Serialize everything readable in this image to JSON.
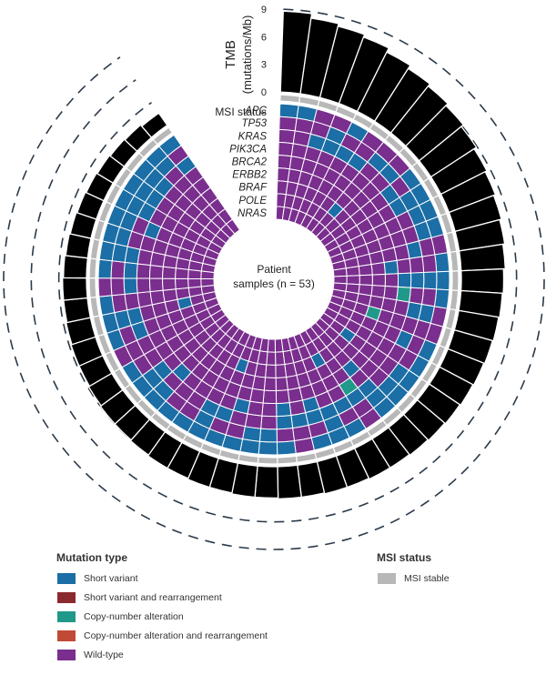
{
  "chart_data": {
    "type": "circos",
    "n_samples": 53,
    "tmb_axis": {
      "label_line1": "TMB",
      "label_line2": "(mutations/Mb)",
      "ticks": [
        "9",
        "6",
        "3",
        "0"
      ],
      "range": [
        0,
        9
      ]
    },
    "msi_track_label": "MSI status",
    "genes": [
      "APC",
      "TP53",
      "KRAS",
      "PIK3CA",
      "BRCA2",
      "ERBB2",
      "BRAF",
      "POLE",
      "NRAS"
    ],
    "center_label_line1": "Patient",
    "center_label_line2": "samples (n = 53)",
    "tmb_values": [
      8.8,
      8.3,
      8.0,
      7.7,
      7.2,
      6.8,
      6.5,
      6.2,
      5.9,
      5.6,
      5.4,
      5.2,
      5.0,
      4.8,
      4.6,
      4.5,
      4.4,
      4.3,
      4.2,
      4.1,
      4.0,
      3.9,
      3.8,
      3.7,
      3.7,
      3.6,
      3.6,
      3.5,
      3.5,
      3.4,
      3.4,
      3.3,
      3.3,
      3.2,
      3.2,
      3.1,
      3.0,
      3.0,
      2.9,
      2.8,
      2.8,
      2.7,
      2.6,
      2.6,
      2.5,
      2.4,
      2.3,
      2.2,
      2.1,
      2.0,
      1.9,
      1.8,
      1.6
    ],
    "mutation_status": [
      "SSWWSWWWSSSSWSSSWWSSSSSWSSSWSSSSSSSSSSSWSSSWSSSSSSSSS",
      "WWWSWWSSWSSSWWSWSWWWSSSWWSWWWSSWWSWWSSWWWSWWWSSSSSSSW",
      "WWSSSSWWSSWWSWSWSWSWWWSSSSSSSWWWSSWWWSWWSSWSSSWWSSSWS",
      "WWWWWWWWWWWWWWSCWWWWWWWCWWSWSWWSWWWWSWWWWWWWWWWSWWWWW",
      "WWWWWWWWWWWWWSWWWWWWWWSWWWWWWWWWWWWWWWWWWWWWWWWWWWWWW",
      "WWWWWWWWWWWWWWWWWCWWWWWWWWWWWWWWWWWWWWWWWWWWWWWWWWWWW",
      "WWWWWWSWWWWWWWWWWWWWSWWWSWWWWWWWSWWWWWWWWSWWWWWWWWWWW",
      "WWWWWWWWWWWWWWWWWWWWWWWWWWWWWWWWWWWWWWWWWWWWWWWWWWWWW",
      "WWWWWWWWWWWWWWWWWWWWWWWWWWWWWWWWWWWWWWWWWWWWWWWWWWWWW"
    ],
    "colors": {
      "short_variant": "#1b6ea6",
      "short_variant_rearr": "#8b2a2e",
      "cna": "#21998a",
      "cna_rearr": "#c04a35",
      "wild_type": "#7a2e8e",
      "msi_stable": "#b8b8b8",
      "tmb_bar": "#000000"
    },
    "legend": {
      "mutation_title": "Mutation type",
      "mutation_items": [
        {
          "label": "Short variant",
          "color": "#1b6ea6"
        },
        {
          "label": "Short variant and rearrangement",
          "color": "#8b2a2e"
        },
        {
          "label": "Copy-number alteration",
          "color": "#21998a"
        },
        {
          "label": "Copy-number alteration and rearrangement",
          "color": "#c04a35"
        },
        {
          "label": "Wild-type",
          "color": "#7a2e8e"
        }
      ],
      "msi_title": "MSI status",
      "msi_items": [
        {
          "label": "MSI stable",
          "color": "#b8b8b8"
        }
      ]
    }
  }
}
